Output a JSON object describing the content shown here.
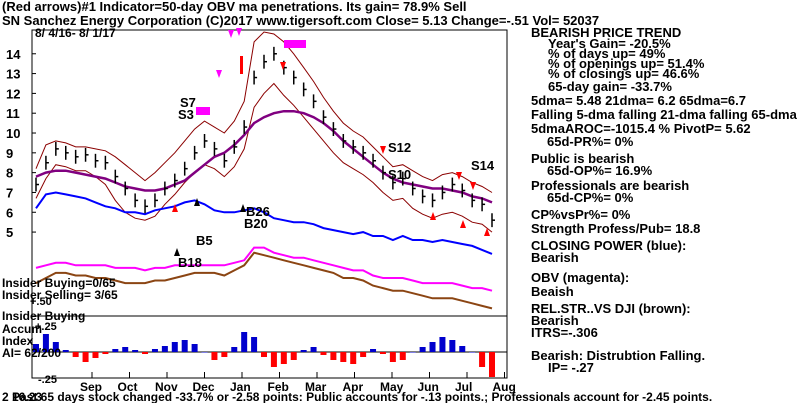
{
  "header": {
    "line1": "(Red arrows)#1 Indicator=50-day OBV ma penetrations. Its gain= 78.9% Sell",
    "line2": "SN   Sanchez Energy Corporation  (C)2017 www.tigersoft.com    Close=  5.13  Change=-.51 Vol= 52037",
    "date_range": "8/ 4/16- 8/ 1/17"
  },
  "right_panel": {
    "lines": [
      "BEARISH PRICE TREND",
      "Year's Gain= -20.5%",
      "% of days up= 49%",
      "% of openings up= 51.4%",
      "% of closings up= 46.6%",
      "65-day gain= -33.7%",
      "5dma= 5.48 21dma= 6.2 65dma=6.7",
      "Falling 5-dma falling 21-dma falling 65-dma",
      "5dmaAROC=-1015.4 %  PivotP= 5.62",
      "65d-PR%= 0%",
      "Public is bearish",
      "65d-OP%= 16.9%",
      "Professionals are bearish",
      "65d-CP%= 0%",
      "CP%vsPr%=  0%",
      "Strength Profess/Pub= 18.8",
      "CLOSING POWER (blue):",
      "Bearish",
      "OBV (magenta):",
      "Beaish",
      "REL.STR..VS DJI (brown):",
      "Bearish",
      "ITRS=-.306",
      "Bearish: Distrubtion Falling.",
      "IP= -.27"
    ]
  },
  "annotations": {
    "insider_buying_count": "Insider Buying=0/65",
    "insider_selling_count": "Insider  Selling= 3/65",
    "plus_50": "+.50",
    "insider_buying": "Insider Buying",
    "accum": "Accum",
    "plus_25": "+.25",
    "index": "Index",
    "ai": "AI= 62/200",
    "minus_25": "-.25",
    "s7": "S7",
    "s3": "S3",
    "s12": "S12",
    "s10": "S10",
    "s14": "S14",
    "b26": "B26",
    "b20": "B20",
    "b5": "B5",
    "b18": "B18"
  },
  "footer": {
    "text": "Past 65 days stock changed -33.7% or -2.58 points:  Public accounts for -.13 points.;  Professionals account for -2.45 points.",
    "left_overlay": "2 16.23"
  },
  "colors": {
    "price": "#000000",
    "upper_band": "#8b0000",
    "lower_band": "#8b0000",
    "ma65": "#800080",
    "closing_power": "#0000ff",
    "obv": "#ff00ff",
    "rel_strength": "#8b4513",
    "up_bars": "#0000cd",
    "down_bars": "#ff0000",
    "arrow_red": "#ff0000",
    "arrow_magenta": "#ff00ff"
  },
  "chart_data": {
    "type": "line",
    "y_ticks": [
      5,
      6,
      7,
      8,
      9,
      10,
      11,
      12,
      13,
      14
    ],
    "ylim": [
      4.6,
      15.2
    ],
    "months": [
      "Sep",
      "Oct",
      "Nov",
      "Dec",
      "Jan",
      "Feb",
      "Mar",
      "Apr",
      "May",
      "Jun",
      "Jul",
      "Aug"
    ],
    "price_close": [
      7.4,
      8.5,
      9.2,
      9.0,
      8.8,
      8.9,
      8.6,
      8.5,
      7.8,
      7.2,
      6.6,
      6.3,
      6.6,
      7.2,
      7.6,
      8.2,
      9.0,
      9.6,
      9.2,
      8.6,
      9.3,
      10.3,
      12.8,
      13.6,
      14.0,
      13.3,
      12.8,
      12.2,
      11.6,
      10.8,
      10.2,
      9.6,
      9.3,
      9.0,
      8.6,
      8.0,
      7.5,
      7.7,
      7.2,
      6.8,
      6.6,
      7.0,
      7.4,
      7.1,
      6.6,
      6.4,
      5.6
    ],
    "upper_band": [
      8.2,
      9.4,
      9.6,
      9.5,
      9.3,
      9.3,
      9.2,
      9.1,
      8.8,
      8.4,
      8.0,
      7.6,
      8.0,
      8.5,
      9.0,
      9.6,
      10.2,
      10.6,
      10.3,
      10.0,
      10.6,
      11.6,
      14.6,
      15.1,
      15.0,
      14.6,
      14.0,
      13.3,
      12.6,
      11.8,
      11.1,
      10.5,
      10.1,
      9.8,
      9.3,
      8.8,
      8.3,
      8.4,
      8.1,
      7.8,
      7.6,
      7.9,
      8.0,
      7.8,
      7.5,
      7.3,
      7.0
    ],
    "lower_band": [
      6.7,
      7.7,
      8.4,
      8.3,
      8.1,
      8.1,
      7.8,
      7.4,
      6.6,
      6.0,
      5.7,
      5.6,
      5.8,
      6.4,
      6.9,
      7.5,
      8.0,
      8.4,
      8.2,
      7.8,
      8.3,
      9.2,
      11.3,
      12.0,
      12.5,
      11.9,
      11.4,
      10.8,
      10.2,
      9.6,
      9.0,
      8.5,
      8.2,
      7.9,
      7.5,
      7.0,
      6.6,
      6.7,
      6.2,
      5.9,
      5.7,
      5.9,
      6.0,
      5.8,
      5.5,
      5.4,
      5.0
    ],
    "ma65": [
      7.8,
      8.0,
      8.1,
      8.1,
      8.0,
      7.9,
      7.8,
      7.7,
      7.5,
      7.3,
      7.2,
      7.1,
      7.1,
      7.2,
      7.4,
      7.6,
      8.0,
      8.4,
      8.8,
      9.0,
      9.4,
      9.9,
      10.5,
      10.8,
      11.0,
      11.1,
      11.1,
      11.0,
      10.8,
      10.5,
      10.1,
      9.6,
      9.2,
      8.8,
      8.4,
      8.0,
      7.7,
      7.5,
      7.4,
      7.3,
      7.2,
      7.2,
      7.1,
      7.0,
      6.8,
      6.7,
      6.5
    ],
    "closing_power": [
      6.2,
      6.9,
      7.0,
      6.9,
      6.8,
      6.7,
      6.5,
      6.3,
      6.2,
      6.0,
      6.0,
      5.9,
      6.1,
      6.2,
      6.3,
      6.5,
      6.6,
      6.4,
      6.1,
      6.0,
      6.0,
      6.1,
      6.2,
      6.0,
      5.7,
      5.6,
      5.5,
      5.5,
      5.4,
      5.2,
      5.1,
      5.0,
      4.9,
      5.0,
      4.8,
      4.8,
      4.6,
      4.8,
      4.6,
      4.6,
      4.5,
      4.6,
      4.5,
      4.4,
      4.3,
      4.1,
      3.9
    ],
    "obv": [
      3.7,
      3.8,
      3.9,
      3.9,
      3.8,
      3.8,
      3.8,
      3.8,
      3.7,
      3.7,
      3.7,
      3.6,
      3.7,
      3.7,
      3.8,
      3.8,
      3.8,
      3.8,
      3.8,
      3.8,
      3.9,
      4.0,
      4.5,
      4.5,
      4.3,
      4.2,
      4.1,
      4.1,
      4.0,
      3.9,
      3.8,
      3.7,
      3.6,
      3.6,
      3.4,
      3.3,
      3.3,
      3.3,
      3.2,
      3.1,
      3.1,
      3.1,
      3.1,
      3.0,
      2.9,
      2.9,
      2.8
    ],
    "rel_strength": [
      3.1,
      3.3,
      3.5,
      3.5,
      3.4,
      3.4,
      3.3,
      3.3,
      3.2,
      3.1,
      3.1,
      3.1,
      3.2,
      3.2,
      3.3,
      3.4,
      3.5,
      3.5,
      3.5,
      3.4,
      3.6,
      3.8,
      4.3,
      4.2,
      4.1,
      4.0,
      3.9,
      3.8,
      3.7,
      3.6,
      3.5,
      3.3,
      3.3,
      3.2,
      3.0,
      2.9,
      2.8,
      2.8,
      2.7,
      2.6,
      2.5,
      2.5,
      2.5,
      2.4,
      2.3,
      2.2,
      2.1
    ],
    "accum_index": [
      0.08,
      0.18,
      0.1,
      0.02,
      -0.05,
      -0.1,
      -0.06,
      -0.02,
      0.03,
      0.05,
      0.02,
      -0.02,
      0.03,
      0.06,
      0.1,
      0.12,
      0.08,
      0.0,
      -0.08,
      -0.05,
      0.05,
      0.2,
      0.15,
      -0.05,
      -0.15,
      -0.12,
      -0.08,
      0.02,
      0.05,
      -0.03,
      -0.08,
      -0.1,
      -0.12,
      -0.05,
      0.03,
      -0.02,
      -0.1,
      -0.08,
      0.0,
      0.05,
      0.1,
      0.15,
      0.12,
      0.06,
      0.0,
      -0.15,
      -0.25
    ]
  }
}
